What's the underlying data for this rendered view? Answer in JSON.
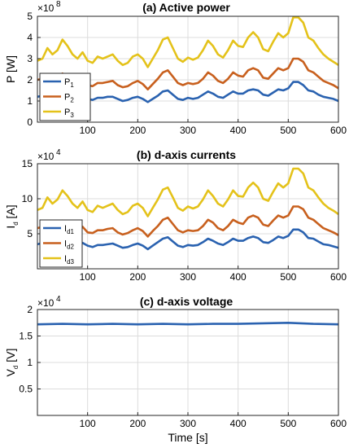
{
  "chart_data": [
    {
      "type": "line",
      "title": "(a) Active power",
      "xlabel": "",
      "ylabel": "P [W]",
      "y_multiplier": "10^8",
      "xlim": [
        0,
        600
      ],
      "ylim": [
        0,
        5
      ],
      "x_ticks": [
        100,
        200,
        300,
        400,
        500,
        600
      ],
      "y_ticks": [
        0,
        1,
        2,
        3,
        4,
        5
      ],
      "grid": true,
      "legend_position": "bottom-left",
      "x": [
        0,
        10,
        20,
        30,
        40,
        50,
        60,
        70,
        80,
        90,
        100,
        110,
        120,
        130,
        140,
        150,
        160,
        170,
        180,
        190,
        200,
        210,
        220,
        230,
        240,
        250,
        260,
        270,
        280,
        290,
        300,
        310,
        320,
        330,
        340,
        350,
        360,
        370,
        380,
        390,
        400,
        410,
        420,
        430,
        440,
        450,
        460,
        470,
        480,
        490,
        500,
        510,
        520,
        530,
        540,
        550,
        560,
        570,
        580,
        590,
        600
      ],
      "series": [
        {
          "name": "P",
          "sub": "1",
          "color": "#2a62b0",
          "values": [
            1.2,
            1.25,
            1.35,
            1.2,
            1.3,
            1.45,
            1.35,
            1.2,
            1.15,
            1.25,
            1.1,
            1.05,
            1.15,
            1.15,
            1.2,
            1.2,
            1.1,
            1.0,
            1.05,
            1.15,
            1.2,
            1.1,
            0.95,
            1.1,
            1.25,
            1.45,
            1.5,
            1.3,
            1.1,
            1.05,
            1.15,
            1.1,
            1.15,
            1.3,
            1.45,
            1.35,
            1.2,
            1.15,
            1.3,
            1.45,
            1.35,
            1.35,
            1.5,
            1.55,
            1.5,
            1.3,
            1.25,
            1.4,
            1.55,
            1.5,
            1.6,
            1.9,
            1.9,
            1.75,
            1.5,
            1.45,
            1.3,
            1.2,
            1.15,
            1.1,
            1.0
          ]
        },
        {
          "name": "P",
          "sub": "2",
          "color": "#c8601e",
          "values": [
            2.0,
            2.05,
            2.2,
            1.95,
            2.05,
            2.3,
            2.15,
            1.95,
            1.85,
            2.0,
            1.75,
            1.7,
            1.85,
            1.85,
            1.9,
            1.95,
            1.75,
            1.65,
            1.7,
            1.85,
            1.95,
            1.8,
            1.55,
            1.8,
            2.05,
            2.35,
            2.45,
            2.15,
            1.85,
            1.75,
            1.85,
            1.8,
            1.85,
            2.05,
            2.35,
            2.2,
            1.95,
            1.85,
            2.05,
            2.35,
            2.2,
            2.15,
            2.45,
            2.55,
            2.45,
            2.1,
            2.05,
            2.3,
            2.55,
            2.45,
            2.55,
            3.0,
            3.0,
            2.85,
            2.45,
            2.35,
            2.15,
            1.95,
            1.85,
            1.75,
            1.6
          ]
        },
        {
          "name": "P",
          "sub": "3",
          "color": "#e4c21a",
          "values": [
            2.9,
            3.0,
            3.5,
            3.2,
            3.4,
            3.9,
            3.6,
            3.2,
            3.0,
            3.3,
            2.9,
            2.8,
            3.1,
            3.0,
            3.1,
            3.2,
            2.9,
            2.7,
            2.8,
            3.1,
            3.2,
            3.0,
            2.6,
            3.0,
            3.4,
            3.9,
            4.0,
            3.5,
            3.0,
            2.85,
            3.05,
            2.95,
            3.05,
            3.4,
            3.85,
            3.6,
            3.2,
            3.05,
            3.4,
            3.85,
            3.6,
            3.55,
            4.0,
            4.25,
            4.0,
            3.45,
            3.35,
            3.8,
            4.2,
            4.0,
            4.2,
            4.95,
            4.95,
            4.7,
            4.0,
            3.85,
            3.5,
            3.2,
            3.0,
            2.85,
            2.7
          ]
        }
      ]
    },
    {
      "type": "line",
      "title": "(b) d-axis currents",
      "xlabel": "",
      "ylabel": "I_d [A]",
      "y_multiplier": "10^4",
      "xlim": [
        0,
        600
      ],
      "ylim": [
        0,
        15
      ],
      "x_ticks": [
        100,
        200,
        300,
        400,
        500,
        600
      ],
      "y_ticks": [
        5,
        10,
        15
      ],
      "grid": true,
      "legend_position": "bottom-left",
      "x": [
        0,
        10,
        20,
        30,
        40,
        50,
        60,
        70,
        80,
        90,
        100,
        110,
        120,
        130,
        140,
        150,
        160,
        170,
        180,
        190,
        200,
        210,
        220,
        230,
        240,
        250,
        260,
        270,
        280,
        290,
        300,
        310,
        320,
        330,
        340,
        350,
        360,
        370,
        380,
        390,
        400,
        410,
        420,
        430,
        440,
        450,
        460,
        470,
        480,
        490,
        500,
        510,
        520,
        530,
        540,
        550,
        560,
        570,
        580,
        590,
        600
      ],
      "series": [
        {
          "name": "I",
          "sub": "d1",
          "color": "#2a62b0",
          "values": [
            3.5,
            3.7,
            4.0,
            3.6,
            3.8,
            4.3,
            4.0,
            3.6,
            3.4,
            3.7,
            3.3,
            3.1,
            3.4,
            3.4,
            3.5,
            3.6,
            3.3,
            3.0,
            3.1,
            3.4,
            3.6,
            3.3,
            2.8,
            3.3,
            3.8,
            4.3,
            4.5,
            3.9,
            3.3,
            3.1,
            3.4,
            3.3,
            3.4,
            3.8,
            4.3,
            4.0,
            3.6,
            3.4,
            3.8,
            4.3,
            4.0,
            4.0,
            4.4,
            4.6,
            4.4,
            3.8,
            3.7,
            4.1,
            4.6,
            4.4,
            4.7,
            5.6,
            5.6,
            5.2,
            4.4,
            4.3,
            3.9,
            3.5,
            3.4,
            3.2,
            3.0
          ]
        },
        {
          "name": "I",
          "sub": "d2",
          "color": "#c8601e",
          "values": [
            5.8,
            6.0,
            6.5,
            5.8,
            6.1,
            6.9,
            6.4,
            5.8,
            5.5,
            6.0,
            5.2,
            5.1,
            5.5,
            5.5,
            5.7,
            5.8,
            5.2,
            4.9,
            5.1,
            5.5,
            5.8,
            5.4,
            4.6,
            5.4,
            6.1,
            7.0,
            7.3,
            6.4,
            5.5,
            5.2,
            5.5,
            5.4,
            5.5,
            6.1,
            7.0,
            6.6,
            5.8,
            5.5,
            6.1,
            7.0,
            6.6,
            6.4,
            7.3,
            7.6,
            7.3,
            6.3,
            6.1,
            6.9,
            7.6,
            7.3,
            7.6,
            8.9,
            8.9,
            8.5,
            7.3,
            7.0,
            6.4,
            5.8,
            5.5,
            5.2,
            4.8
          ]
        },
        {
          "name": "I",
          "sub": "d3",
          "color": "#e4c21a",
          "values": [
            8.4,
            8.7,
            10.2,
            9.3,
            9.9,
            11.2,
            10.4,
            9.3,
            8.7,
            9.6,
            8.4,
            8.1,
            9.0,
            8.7,
            9.0,
            9.3,
            8.4,
            7.8,
            8.1,
            9.0,
            9.3,
            8.7,
            7.5,
            8.7,
            9.9,
            11.3,
            11.6,
            10.2,
            8.7,
            8.3,
            8.9,
            8.6,
            8.9,
            9.9,
            11.2,
            10.4,
            9.3,
            8.9,
            9.9,
            11.2,
            10.4,
            10.3,
            11.6,
            12.3,
            11.6,
            10.0,
            9.7,
            11.0,
            12.2,
            11.6,
            12.2,
            14.3,
            14.3,
            13.6,
            11.6,
            11.2,
            10.2,
            9.3,
            8.7,
            8.3,
            7.8
          ]
        }
      ]
    },
    {
      "type": "line",
      "title": "(c) d-axis voltage",
      "xlabel": "Time [s]",
      "ylabel": "V_d [V]",
      "y_multiplier": "10^4",
      "xlim": [
        0,
        600
      ],
      "ylim": [
        0,
        2
      ],
      "x_ticks": [
        100,
        200,
        300,
        400,
        500,
        600
      ],
      "y_ticks": [
        0.5,
        1,
        1.5,
        2
      ],
      "grid": true,
      "x": [
        0,
        50,
        100,
        150,
        200,
        250,
        300,
        350,
        400,
        450,
        500,
        550,
        600
      ],
      "series": [
        {
          "name": "",
          "color": "#2a62b0",
          "values": [
            1.72,
            1.73,
            1.72,
            1.73,
            1.72,
            1.73,
            1.72,
            1.73,
            1.73,
            1.74,
            1.75,
            1.73,
            1.72
          ]
        }
      ]
    }
  ]
}
